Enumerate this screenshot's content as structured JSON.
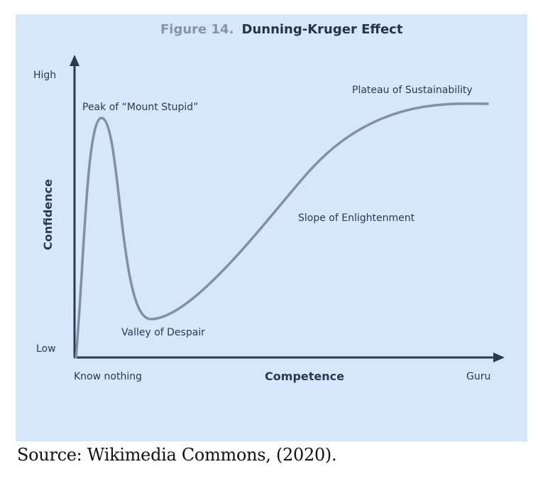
{
  "figure": {
    "title_prefix": "Figure 14.",
    "title": "Dunning-Kruger Effect",
    "y_axis": {
      "label": "Confidence",
      "high": "High",
      "low": "Low"
    },
    "x_axis": {
      "label": "Competence",
      "start": "Know nothing",
      "end": "Guru"
    },
    "annotations": {
      "peak": "Peak of “Mount Stupid”",
      "valley": "Valley of Despair",
      "slope": "Slope of Enlightenment",
      "plateau": "Plateau of Sustainability"
    },
    "colors": {
      "background": "#d6e6fb",
      "axis": "#2b3a50",
      "curve": "#8390a3"
    }
  },
  "source": "Source: Wikimedia Commons, (2020)."
}
